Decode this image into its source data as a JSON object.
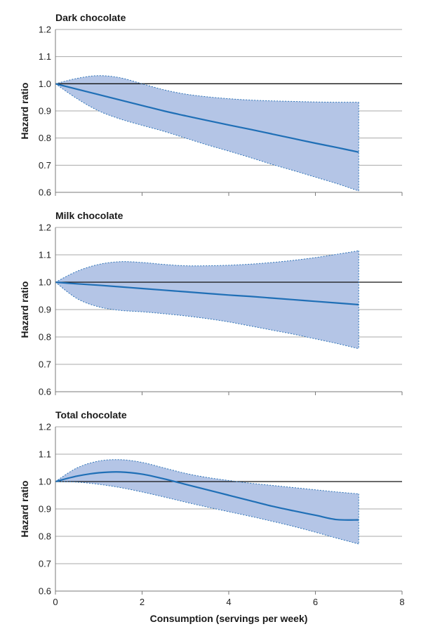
{
  "chart_data": [
    {
      "type": "line",
      "title": "Dark chocolate",
      "xlabel": "",
      "ylabel": "Hazard ratio",
      "xlim": [
        0,
        8
      ],
      "ylim": [
        0.6,
        1.2
      ],
      "x_ticks": [
        0,
        2,
        4,
        6,
        8
      ],
      "x_tick_labels": [
        "",
        "",
        "",
        "",
        ""
      ],
      "y_ticks": [
        0.6,
        0.7,
        0.8,
        0.9,
        1.0,
        1.1,
        1.2
      ],
      "y_tick_labels": [
        "0.6",
        "0.7",
        "0.8",
        "0.9",
        "1.0",
        "1.1",
        "1.2"
      ],
      "reference_line": 1.0,
      "grid": "horizontal",
      "x": [
        0,
        0.5,
        1,
        1.5,
        2,
        2.5,
        3,
        3.5,
        4,
        4.5,
        5,
        5.5,
        6,
        6.5,
        7
      ],
      "series": [
        {
          "name": "",
          "role": "estimate",
          "values": [
            1.0,
            0.98,
            0.96,
            0.94,
            0.92,
            0.9,
            0.882,
            0.865,
            0.848,
            0.832,
            0.815,
            0.798,
            0.781,
            0.765,
            0.748
          ]
        },
        {
          "name": "",
          "role": "upper",
          "values": [
            1.0,
            1.02,
            1.03,
            1.022,
            1.0,
            0.978,
            0.962,
            0.952,
            0.945,
            0.94,
            0.937,
            0.935,
            0.933,
            0.932,
            0.932
          ]
        },
        {
          "name": "",
          "role": "lower",
          "values": [
            1.0,
            0.945,
            0.9,
            0.87,
            0.847,
            0.825,
            0.8,
            0.775,
            0.752,
            0.728,
            0.703,
            0.68,
            0.656,
            0.632,
            0.605
          ]
        }
      ]
    },
    {
      "type": "line",
      "title": "Milk chocolate",
      "xlabel": "",
      "ylabel": "Hazard ratio",
      "xlim": [
        0,
        8
      ],
      "ylim": [
        0.6,
        1.2
      ],
      "x_ticks": [
        0,
        2,
        4,
        6,
        8
      ],
      "x_tick_labels": [
        "",
        "",
        "",
        "",
        ""
      ],
      "y_ticks": [
        0.6,
        0.7,
        0.8,
        0.9,
        1.0,
        1.1,
        1.2
      ],
      "y_tick_labels": [
        "0.6",
        "0.7",
        "0.8",
        "0.9",
        "1.0",
        "1.1",
        "1.2"
      ],
      "reference_line": 1.0,
      "grid": "horizontal",
      "x": [
        0,
        0.5,
        1,
        1.5,
        2,
        2.5,
        3,
        3.5,
        4,
        4.5,
        5,
        5.5,
        6,
        6.5,
        7
      ],
      "series": [
        {
          "name": "",
          "role": "estimate",
          "values": [
            1.0,
            0.994,
            0.989,
            0.983,
            0.977,
            0.971,
            0.965,
            0.959,
            0.953,
            0.948,
            0.942,
            0.936,
            0.93,
            0.924,
            0.918
          ]
        },
        {
          "name": "",
          "role": "upper",
          "values": [
            1.0,
            1.04,
            1.065,
            1.075,
            1.072,
            1.065,
            1.06,
            1.06,
            1.062,
            1.066,
            1.072,
            1.08,
            1.09,
            1.102,
            1.115
          ]
        },
        {
          "name": "",
          "role": "lower",
          "values": [
            1.0,
            0.94,
            0.91,
            0.897,
            0.892,
            0.885,
            0.877,
            0.867,
            0.855,
            0.84,
            0.825,
            0.81,
            0.793,
            0.776,
            0.757
          ]
        }
      ]
    },
    {
      "type": "line",
      "title": "Total chocolate",
      "xlabel": "Consumption (servings per week)",
      "ylabel": "Hazard ratio",
      "xlim": [
        0,
        8
      ],
      "ylim": [
        0.6,
        1.2
      ],
      "x_ticks": [
        0,
        2,
        4,
        6,
        8
      ],
      "x_tick_labels": [
        "0",
        "2",
        "4",
        "6",
        "8"
      ],
      "y_ticks": [
        0.6,
        0.7,
        0.8,
        0.9,
        1.0,
        1.1,
        1.2
      ],
      "y_tick_labels": [
        "0.6",
        "0.7",
        "0.8",
        "0.9",
        "1.0",
        "1.1",
        "1.2"
      ],
      "reference_line": 1.0,
      "grid": "horizontal",
      "x": [
        0,
        0.5,
        1,
        1.5,
        2,
        2.5,
        3,
        3.5,
        4,
        4.5,
        5,
        5.5,
        6,
        6.5,
        7
      ],
      "series": [
        {
          "name": "",
          "role": "estimate",
          "values": [
            1.0,
            1.02,
            1.032,
            1.035,
            1.027,
            1.01,
            0.99,
            0.97,
            0.95,
            0.93,
            0.91,
            0.893,
            0.877,
            0.861,
            0.86
          ]
        },
        {
          "name": "",
          "role": "upper",
          "values": [
            1.0,
            1.05,
            1.075,
            1.08,
            1.07,
            1.05,
            1.03,
            1.015,
            1.004,
            0.994,
            0.986,
            0.978,
            0.97,
            0.962,
            0.955
          ]
        },
        {
          "name": "",
          "role": "lower",
          "values": [
            1.0,
            0.998,
            0.99,
            0.978,
            0.962,
            0.944,
            0.925,
            0.907,
            0.89,
            0.873,
            0.855,
            0.836,
            0.815,
            0.793,
            0.772
          ]
        }
      ]
    }
  ],
  "colors": {
    "band_fill": "#b4c5e6",
    "band_edge": "#2f74b7",
    "estimate_line": "#1f6fb6",
    "reference_line": "#111111",
    "grid": "#a8a8a8"
  }
}
